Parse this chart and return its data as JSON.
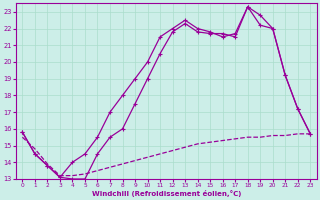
{
  "xlabel": "Windchill (Refroidissement éolien,°C)",
  "bg_color": "#cceee8",
  "line_color": "#990099",
  "grid_color": "#aaddcc",
  "xlim": [
    -0.5,
    23.5
  ],
  "ylim": [
    13,
    23.5
  ],
  "xticks": [
    0,
    1,
    2,
    3,
    4,
    5,
    6,
    7,
    8,
    9,
    10,
    11,
    12,
    13,
    14,
    15,
    16,
    17,
    18,
    19,
    20,
    21,
    22,
    23
  ],
  "yticks": [
    13,
    14,
    15,
    16,
    17,
    18,
    19,
    20,
    21,
    22,
    23
  ],
  "line1_x": [
    0,
    1,
    2,
    3,
    4,
    5,
    6,
    7,
    8,
    9,
    10,
    11,
    12,
    13,
    14,
    15,
    16,
    17,
    18,
    19,
    20,
    21,
    22,
    23
  ],
  "line1_y": [
    15.8,
    14.5,
    13.8,
    13.1,
    14.0,
    14.5,
    15.5,
    17.0,
    18.0,
    19.0,
    20.0,
    21.5,
    22.0,
    22.5,
    22.0,
    21.8,
    21.5,
    21.7,
    23.3,
    22.8,
    22.0,
    19.2,
    17.2,
    15.7
  ],
  "line2_x": [
    0,
    1,
    2,
    3,
    4,
    5,
    6,
    7,
    8,
    9,
    10,
    11,
    12,
    13,
    14,
    15,
    16,
    17,
    18,
    19,
    20,
    21,
    22,
    23
  ],
  "line2_y": [
    15.8,
    14.5,
    13.8,
    13.1,
    13.0,
    13.0,
    14.5,
    15.5,
    16.0,
    17.5,
    19.0,
    20.5,
    21.8,
    22.3,
    21.8,
    21.7,
    21.7,
    21.5,
    23.3,
    22.2,
    22.0,
    19.2,
    17.2,
    15.7
  ],
  "line3_x": [
    0,
    1,
    2,
    3,
    4,
    5,
    6,
    7,
    8,
    9,
    10,
    11,
    12,
    13,
    14,
    15,
    16,
    17,
    18,
    19,
    20,
    21,
    22,
    23
  ],
  "line3_y": [
    15.5,
    14.8,
    13.9,
    13.2,
    13.2,
    13.3,
    13.5,
    13.7,
    13.9,
    14.1,
    14.3,
    14.5,
    14.7,
    14.9,
    15.1,
    15.2,
    15.3,
    15.4,
    15.5,
    15.5,
    15.6,
    15.6,
    15.7,
    15.7
  ]
}
